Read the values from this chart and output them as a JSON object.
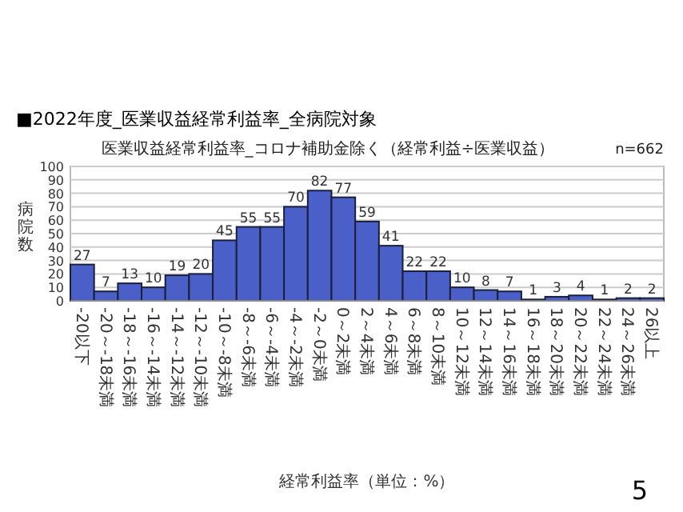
{
  "chart_data": {
    "type": "bar",
    "title": "■2022年度_医業収益経常利益率_全病院対象",
    "subtitle": "医業収益経常利益率_コロナ補助金除く（経常利益÷医業収益）",
    "xlabel": "経常利益率（単位：%）",
    "ylabel": "病院数",
    "annotations": [
      "n=662",
      "5"
    ],
    "categories": [
      "-20以下",
      "-20～-18未満",
      "-18～-16未満",
      "-16～-14未満",
      "-14～-12未満",
      "-12～-10未満",
      "-10～-8未満",
      "-8～-6未満",
      "-6～-4未満",
      "-4～-2未満",
      "-2～0未満",
      "0～2未満",
      "2～4未満",
      "4～6未満",
      "6～8未満",
      "8～10未満",
      "10～12未満",
      "12～14未満",
      "14～16未満",
      "16～18未満",
      "18～20未満",
      "20～22未満",
      "22～24未満",
      "24～26未満",
      "26以上"
    ],
    "values": [
      27,
      7,
      13,
      10,
      19,
      20,
      45,
      55,
      55,
      70,
      82,
      77,
      59,
      41,
      22,
      22,
      10,
      8,
      7,
      1,
      3,
      4,
      1,
      2,
      2
    ],
    "color": "#4a5fc7",
    "ylim": [
      0,
      100
    ],
    "yticks": [
      0,
      10,
      20,
      30,
      40,
      50,
      60,
      70,
      80,
      90,
      100
    ],
    "grid": "y",
    "data_labels": true
  }
}
